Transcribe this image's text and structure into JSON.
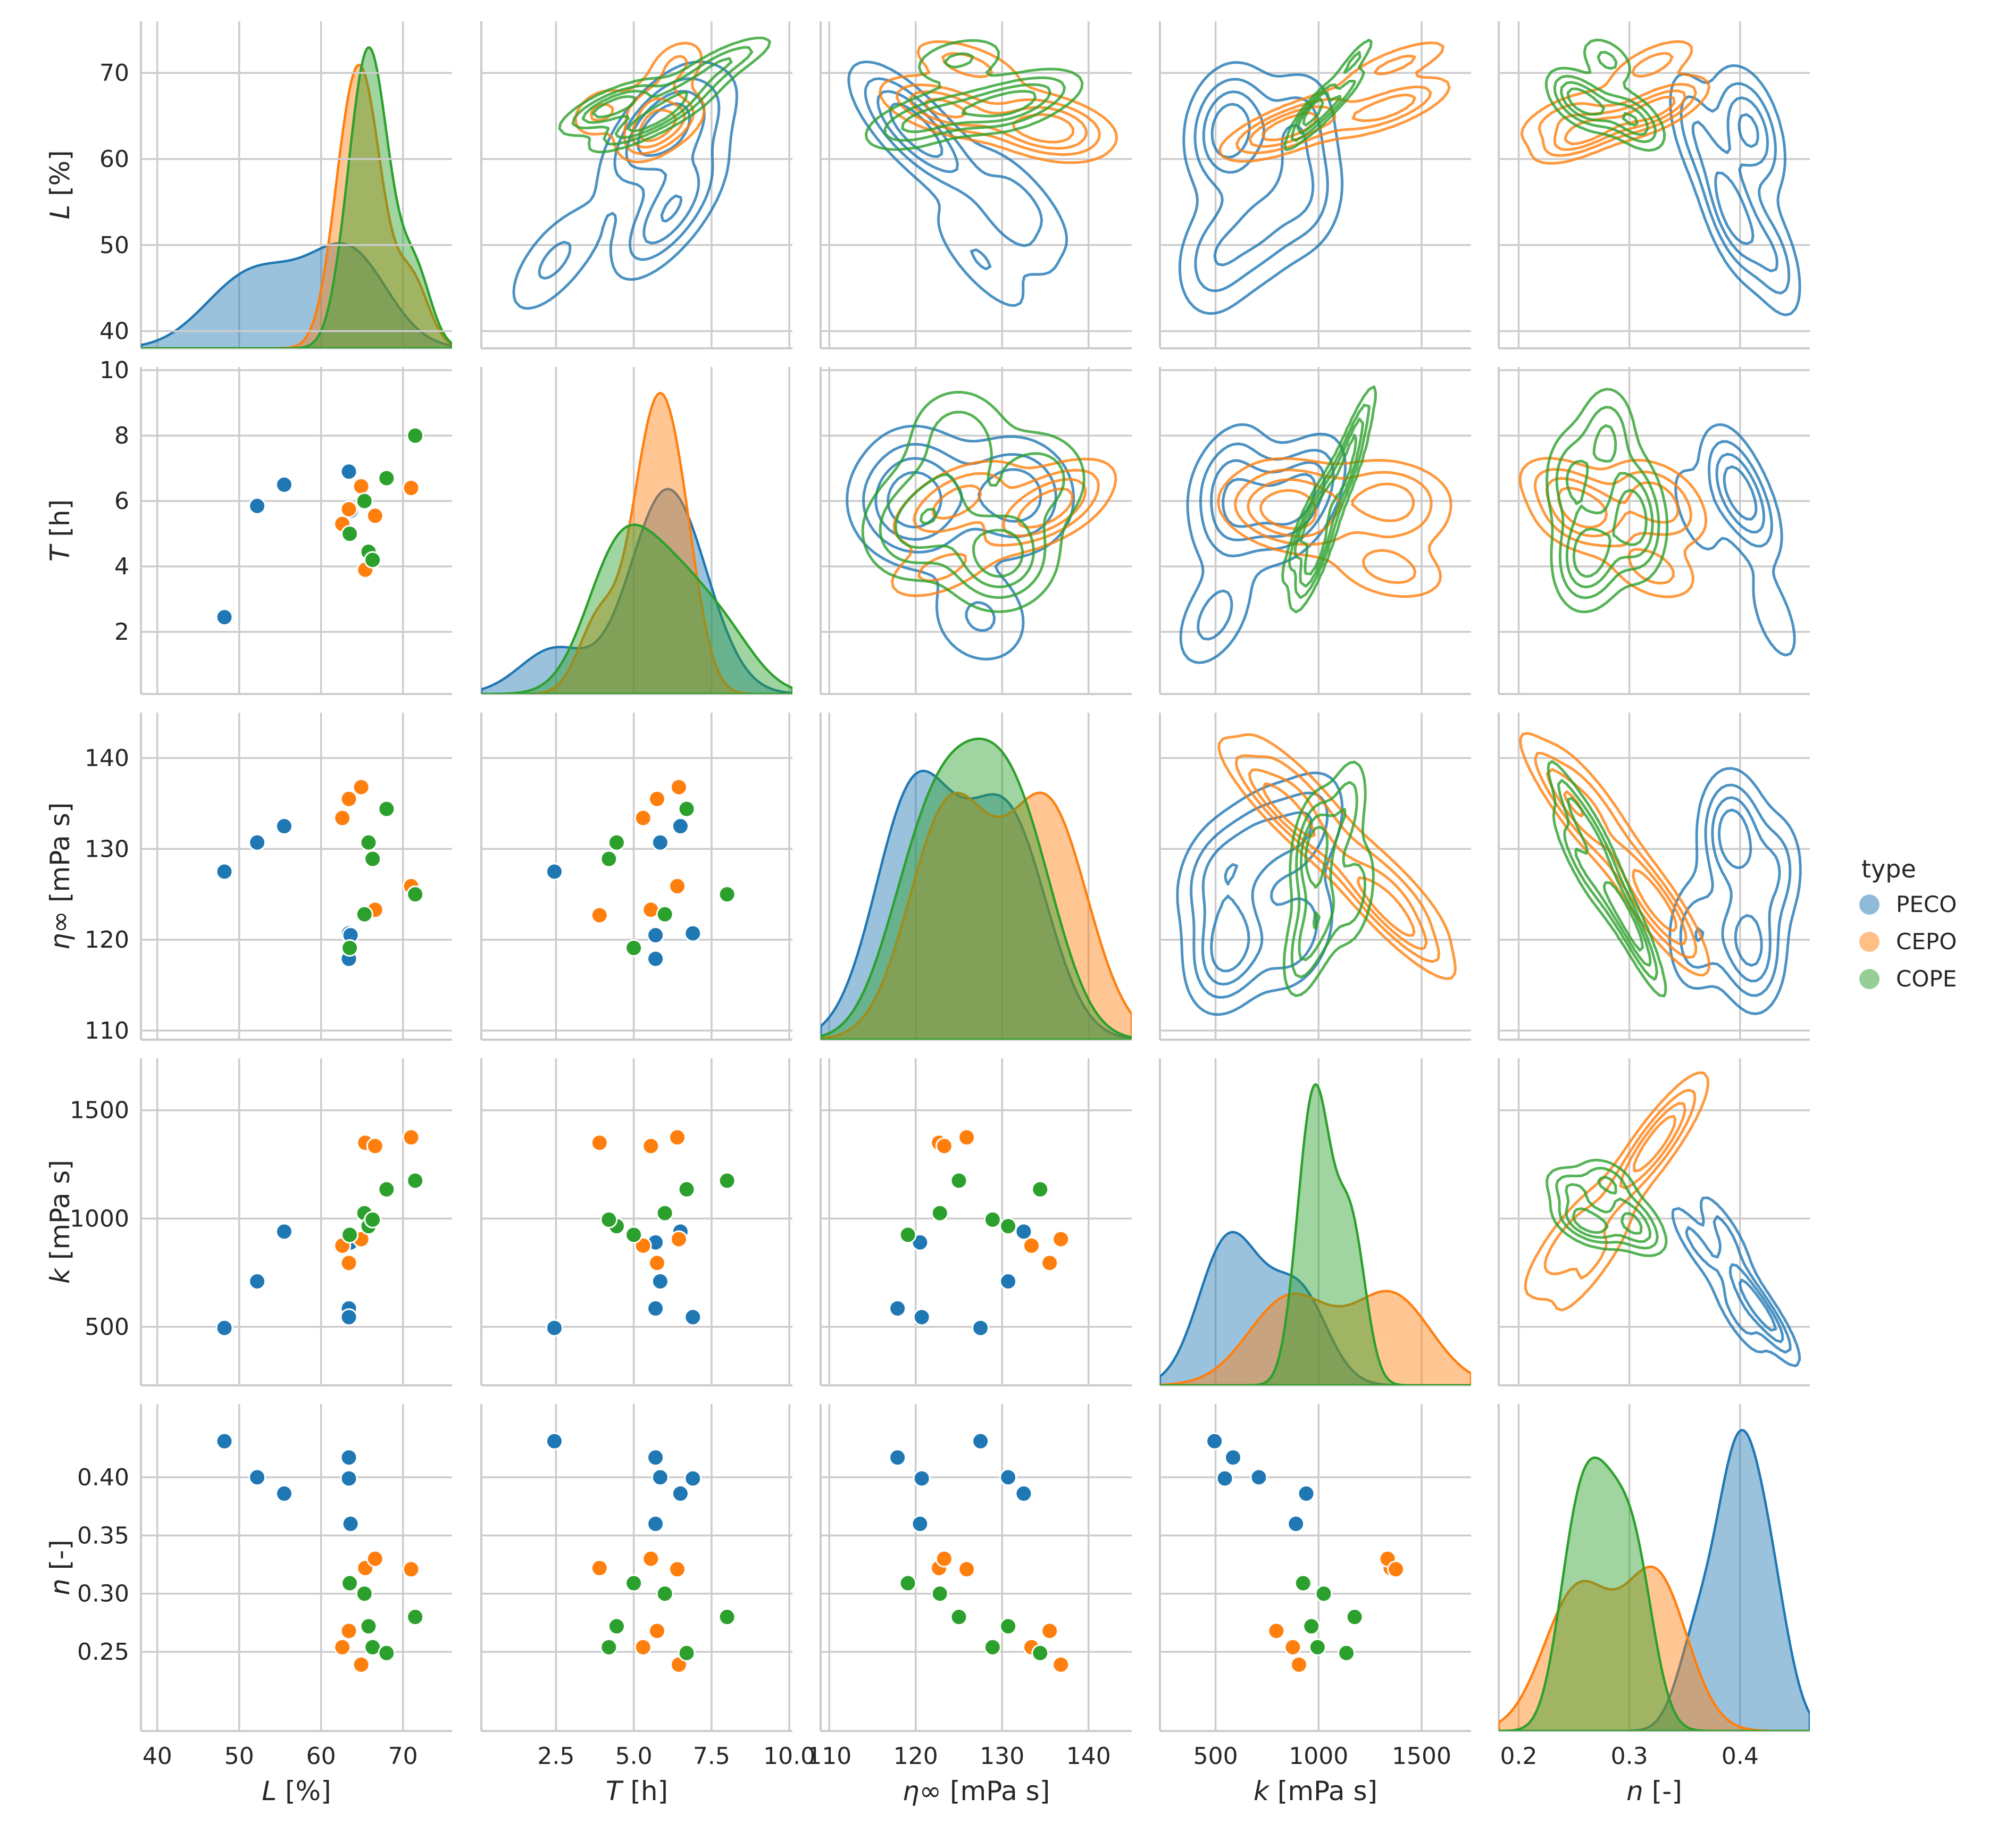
{
  "chart_data": {
    "type": "scatter",
    "figure": "pairplot",
    "description_kind": "seaborn pair grid: KDE on diagonal, scatter in lower triangle, KDE contours in upper triangle",
    "hue": "type",
    "legend": {
      "title": "type",
      "placement": "right",
      "entries": [
        {
          "label": "PECO",
          "color": "#1f77b4"
        },
        {
          "label": "CEPO",
          "color": "#ff7f0e"
        },
        {
          "label": "COPE",
          "color": "#2ca02c"
        }
      ]
    },
    "variables": [
      {
        "key": "L",
        "symbol": "L",
        "unit": " [%]",
        "range": [
          38,
          76
        ],
        "ticks": [
          40,
          50,
          60,
          70
        ],
        "tick_labels": [
          "40",
          "50",
          "60",
          "70"
        ]
      },
      {
        "key": "T",
        "symbol": "T",
        "unit": " [h]",
        "range": [
          0.1,
          10.1
        ],
        "ticks": [
          2.5,
          5.0,
          7.5,
          10.0
        ],
        "tick_labels": [
          "2.5",
          "5.0",
          "7.5",
          "10.0"
        ],
        "y_ticks": [
          2,
          4,
          6,
          8,
          10
        ],
        "y_tick_labels": [
          "2",
          "4",
          "6",
          "8",
          "10"
        ]
      },
      {
        "key": "eta",
        "symbol": "η∞",
        "unit": " [mPa s]",
        "range": [
          109,
          145
        ],
        "ticks": [
          110,
          120,
          130,
          140
        ],
        "tick_labels": [
          "110",
          "120",
          "130",
          "140"
        ]
      },
      {
        "key": "k",
        "symbol": "k",
        "unit": " [mPa s]",
        "range": [
          230,
          1740
        ],
        "ticks": [
          500,
          1000,
          1500
        ],
        "tick_labels": [
          "500",
          "1000",
          "1500"
        ]
      },
      {
        "key": "n",
        "symbol": "n",
        "unit": " [-]",
        "range": [
          0.182,
          0.463
        ],
        "ticks": [
          0.2,
          0.3,
          0.4
        ],
        "tick_labels": [
          "0.2",
          "0.3",
          "0.4"
        ],
        "y_ticks": [
          0.25,
          0.3,
          0.35,
          0.4
        ],
        "y_tick_labels": [
          "0.25",
          "0.30",
          "0.35",
          "0.40"
        ]
      }
    ],
    "series": [
      {
        "name": "PECO",
        "color": "#1f77b4",
        "points": [
          {
            "L": 48.2,
            "T": 2.45,
            "eta": 127.5,
            "k": 495,
            "n": 0.431
          },
          {
            "L": 52.2,
            "T": 5.85,
            "eta": 130.7,
            "k": 710,
            "n": 0.4
          },
          {
            "L": 55.5,
            "T": 6.5,
            "eta": 132.5,
            "k": 940,
            "n": 0.386
          },
          {
            "L": 63.4,
            "T": 5.7,
            "eta": 117.9,
            "k": 585,
            "n": 0.417
          },
          {
            "L": 63.4,
            "T": 6.9,
            "eta": 120.7,
            "k": 545,
            "n": 0.399
          },
          {
            "L": 63.6,
            "T": 5.7,
            "eta": 120.5,
            "k": 890,
            "n": 0.36
          }
        ]
      },
      {
        "name": "CEPO",
        "color": "#ff7f0e",
        "points": [
          {
            "L": 62.6,
            "T": 5.3,
            "eta": 133.4,
            "k": 875,
            "n": 0.254
          },
          {
            "L": 63.4,
            "T": 5.75,
            "eta": 135.5,
            "k": 795,
            "n": 0.268
          },
          {
            "L": 64.9,
            "T": 6.45,
            "eta": 136.8,
            "k": 905,
            "n": 0.239
          },
          {
            "L": 65.4,
            "T": 3.9,
            "eta": 122.7,
            "k": 1350,
            "n": 0.322
          },
          {
            "L": 66.6,
            "T": 5.55,
            "eta": 123.3,
            "k": 1335,
            "n": 0.33
          },
          {
            "L": 71.0,
            "T": 6.4,
            "eta": 125.9,
            "k": 1375,
            "n": 0.321
          }
        ]
      },
      {
        "name": "COPE",
        "color": "#2ca02c",
        "points": [
          {
            "L": 63.5,
            "T": 5.0,
            "eta": 119.1,
            "k": 925,
            "n": 0.309
          },
          {
            "L": 65.3,
            "T": 6.0,
            "eta": 122.8,
            "k": 1025,
            "n": 0.3
          },
          {
            "L": 65.8,
            "T": 4.45,
            "eta": 130.7,
            "k": 965,
            "n": 0.272
          },
          {
            "L": 66.3,
            "T": 4.2,
            "eta": 128.9,
            "k": 995,
            "n": 0.254
          },
          {
            "L": 68.0,
            "T": 6.7,
            "eta": 134.4,
            "k": 1135,
            "n": 0.249
          },
          {
            "L": 71.5,
            "T": 8.0,
            "eta": 125.0,
            "k": 1175,
            "n": 0.28
          }
        ]
      }
    ],
    "diagonal": "kde",
    "lower": "scatter",
    "upper": "kde contours"
  }
}
